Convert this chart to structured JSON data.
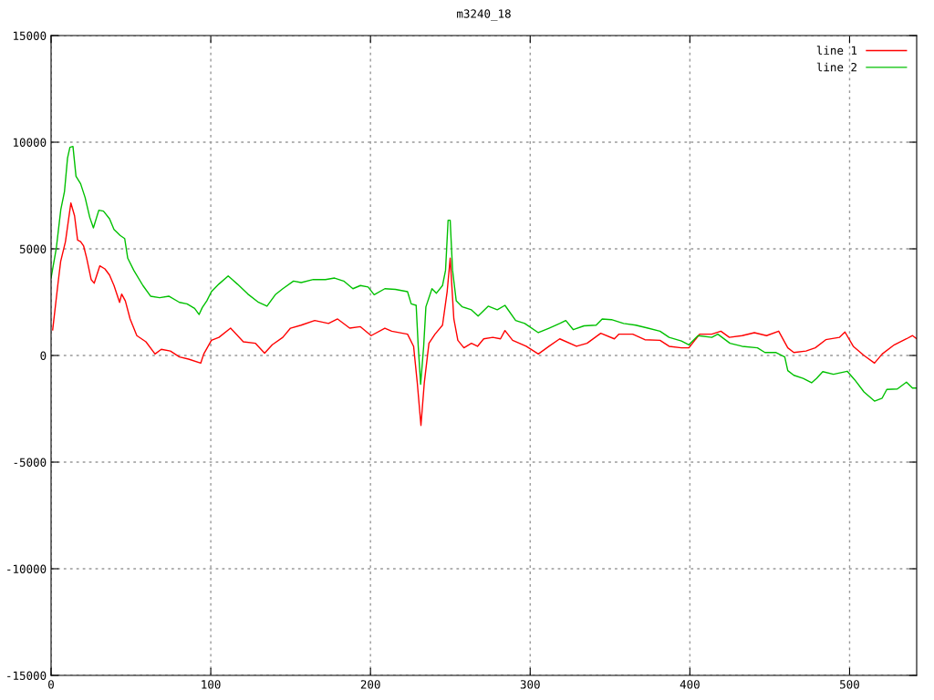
{
  "chart_data": {
    "type": "line",
    "title": "m3240_18",
    "xlim": [
      0,
      542
    ],
    "xticks": [
      0,
      100,
      200,
      300,
      400,
      500
    ],
    "ylim": [
      -15000,
      15000
    ],
    "yticks": [
      -15000,
      -10000,
      -5000,
      0,
      5000,
      10000,
      15000
    ],
    "grid": true,
    "legend": "top right",
    "line_style": "solid",
    "marker": "none",
    "series": [
      {
        "name": "line 1",
        "color": "#ff0000",
        "x": [
          1,
          4.2,
          6,
          9,
          12.4,
          14.7,
          16.6,
          18.5,
          20.4,
          22.3,
          25.1,
          27,
          30.5,
          33.7,
          36.6,
          39.4,
          42.9,
          44.2,
          46.5,
          49.5,
          53.7,
          59.4,
          65.1,
          69,
          74.7,
          80.4,
          86.1,
          93.7,
          95.6,
          100.4,
          105.1,
          112.4,
          120.4,
          128,
          133.7,
          138.5,
          145.1,
          149.9,
          156.6,
          165.1,
          173.7,
          179.4,
          187,
          193.7,
          200.4,
          209,
          213.3,
          223.2,
          227,
          229.3,
          231.6,
          233.7,
          236.6,
          240.4,
          245.1,
          248,
          249.9,
          252.2,
          254.7,
          258.5,
          263.2,
          267,
          270.9,
          276.6,
          281.4,
          284.2,
          289,
          297.5,
          305.1,
          311.8,
          318.5,
          329,
          335.6,
          344.2,
          352.7,
          355.6,
          364.2,
          371.8,
          381.3,
          387,
          394.7,
          399.4,
          406.1,
          413.7,
          419.4,
          424.7,
          432.7,
          440.4,
          448,
          455.6,
          461.3,
          465.1,
          472.7,
          478.5,
          485.1,
          493.7,
          497.1,
          502.3,
          509,
          515.6,
          520.4,
          528,
          535.6,
          539.4,
          542
        ],
        "values": [
          1200,
          3290,
          4410,
          5340,
          7150,
          6550,
          5410,
          5340,
          5130,
          4560,
          3560,
          3390,
          4200,
          4060,
          3770,
          3280,
          2490,
          2880,
          2560,
          1710,
          930,
          640,
          70,
          290,
          210,
          -70,
          -170,
          -360,
          70,
          710,
          850,
          1280,
          640,
          570,
          110,
          500,
          850,
          1280,
          1420,
          1640,
          1500,
          1710,
          1280,
          1350,
          930,
          1280,
          1140,
          1000,
          430,
          -1280,
          -3280,
          -1280,
          570,
          1000,
          1420,
          2990,
          4560,
          1710,
          710,
          360,
          570,
          430,
          780,
          850,
          780,
          1170,
          710,
          430,
          70,
          430,
          780,
          430,
          570,
          1040,
          780,
          1000,
          1000,
          740,
          710,
          430,
          360,
          360,
          1000,
          1000,
          1140,
          850,
          930,
          1070,
          930,
          1140,
          360,
          140,
          210,
          360,
          740,
          850,
          1100,
          430,
          0,
          -360,
          70,
          500,
          780,
          930,
          780
        ]
      },
      {
        "name": "line 2",
        "color": "#00c000",
        "x": [
          0,
          3.2,
          6.1,
          8.4,
          10.3,
          11.8,
          13.7,
          15.6,
          18.5,
          21.3,
          24.2,
          26.5,
          29.9,
          32.8,
          36.6,
          39.4,
          43.2,
          46.1,
          48,
          51.8,
          57.5,
          62.3,
          68,
          73.7,
          80.4,
          85.1,
          89.9,
          92.7,
          94.7,
          97.5,
          100.4,
          105.1,
          110.9,
          116.6,
          123.2,
          129.9,
          135.2,
          140.4,
          145.1,
          151.8,
          156.6,
          164.2,
          171.8,
          177.5,
          183.2,
          189,
          193.7,
          198.5,
          202.3,
          209,
          215.6,
          223.2,
          225.5,
          228.6,
          229.9,
          231.4,
          233.3,
          234.7,
          238.5,
          241.3,
          245.1,
          247,
          248.6,
          249.9,
          251.4,
          253.7,
          257.5,
          263.2,
          267.4,
          273.7,
          279.4,
          284.2,
          290.9,
          296.6,
          305.1,
          311.8,
          318.5,
          322.3,
          327,
          333.7,
          341.3,
          345.1,
          350.9,
          358.5,
          366.1,
          373.7,
          381.3,
          387,
          394.7,
          399.4,
          405.1,
          413.7,
          417.5,
          425.1,
          432.7,
          442.3,
          447,
          453.7,
          459.4,
          461.3,
          465.1,
          470.9,
          476.2,
          479.4,
          483.2,
          489.9,
          498.5,
          503.2,
          509,
          515.6,
          520.4,
          523.3,
          529.9,
          535.6,
          539.4,
          542
        ],
        "values": [
          3630,
          4990,
          6840,
          7690,
          9260,
          9760,
          9800,
          8400,
          8050,
          7410,
          6480,
          5980,
          6810,
          6770,
          6410,
          5910,
          5630,
          5480,
          4560,
          3990,
          3280,
          2780,
          2710,
          2780,
          2490,
          2420,
          2210,
          1920,
          2250,
          2560,
          2990,
          3350,
          3730,
          3350,
          2880,
          2490,
          2310,
          2850,
          3130,
          3490,
          3420,
          3560,
          3560,
          3630,
          3490,
          3130,
          3280,
          3210,
          2850,
          3130,
          3100,
          2990,
          2420,
          2350,
          430,
          -1350,
          430,
          2280,
          3130,
          2920,
          3280,
          3990,
          6340,
          6340,
          3990,
          2560,
          2280,
          2140,
          1850,
          2310,
          2140,
          2350,
          1640,
          1500,
          1070,
          1280,
          1500,
          1640,
          1210,
          1390,
          1420,
          1710,
          1680,
          1500,
          1420,
          1280,
          1140,
          850,
          680,
          500,
          930,
          850,
          1000,
          570,
          430,
          360,
          140,
          140,
          -70,
          -710,
          -930,
          -1070,
          -1280,
          -1070,
          -760,
          -880,
          -740,
          -1140,
          -1710,
          -2140,
          -2000,
          -1590,
          -1570,
          -1250,
          -1530,
          -1530
        ]
      }
    ]
  }
}
